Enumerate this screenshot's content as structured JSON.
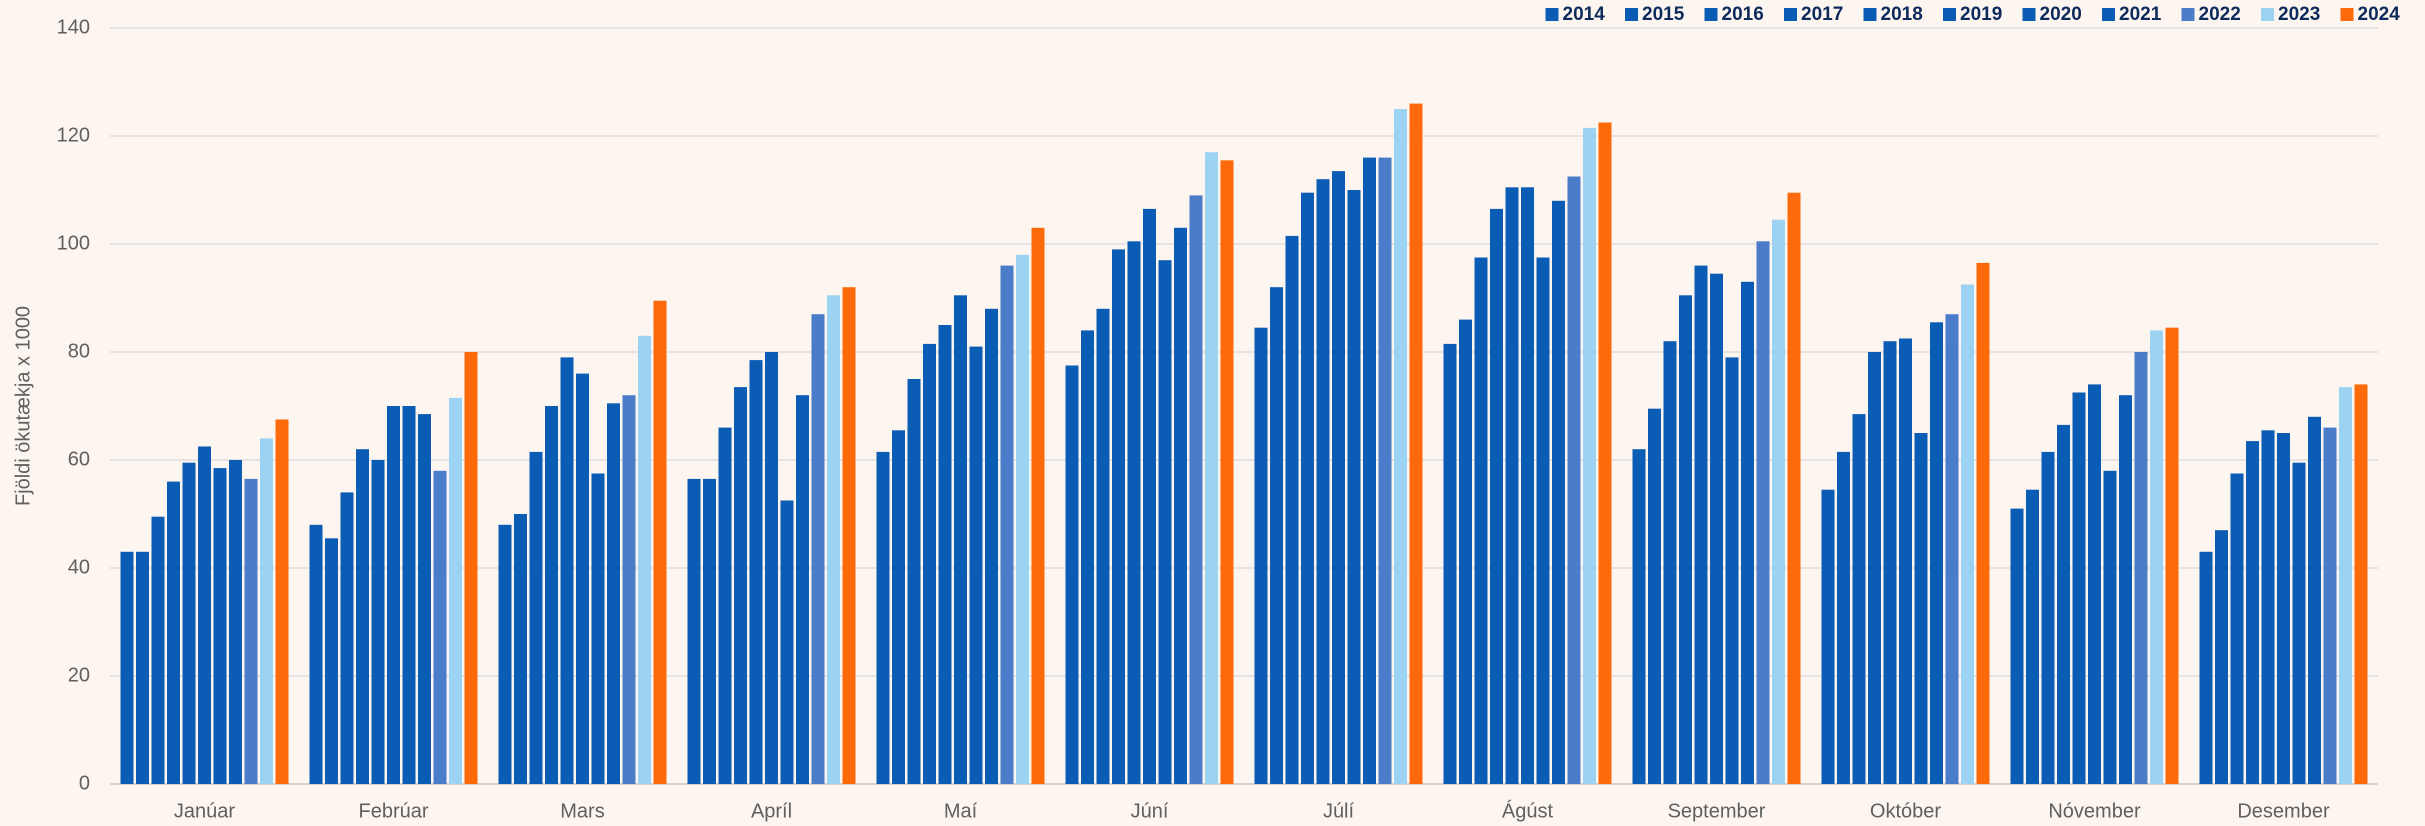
{
  "chart_data": {
    "type": "bar",
    "y_label": "Fjöldi ökutækja x 1000",
    "categories": [
      "Janúar",
      "Febrúar",
      "Mars",
      "Apríl",
      "Maí",
      "Júní",
      "Júlí",
      "Ágúst",
      "September",
      "Október",
      "Nóvember",
      "Desember"
    ],
    "series": [
      {
        "name": "2014",
        "color": "#0b5cb5",
        "values": [
          43,
          48,
          48,
          56.5,
          61.5,
          77.5,
          84.5,
          81.5,
          62,
          54.5,
          51,
          43
        ]
      },
      {
        "name": "2015",
        "color": "#0b5cb5",
        "values": [
          43,
          45.5,
          50,
          56.5,
          65.5,
          84,
          92,
          86,
          69.5,
          61.5,
          54.5,
          47
        ]
      },
      {
        "name": "2016",
        "color": "#0b5cb5",
        "values": [
          49.5,
          54,
          61.5,
          66,
          75,
          88,
          101.5,
          97.5,
          82,
          68.5,
          61.5,
          57.5
        ]
      },
      {
        "name": "2017",
        "color": "#0b5cb5",
        "values": [
          56,
          62,
          70,
          73.5,
          81.5,
          99,
          109.5,
          106.5,
          90.5,
          80,
          66.5,
          63.5
        ]
      },
      {
        "name": "2018",
        "color": "#0b5cb5",
        "values": [
          59.5,
          60,
          79,
          78.5,
          85,
          100.5,
          112,
          110.5,
          96,
          82,
          72.5,
          65.5
        ]
      },
      {
        "name": "2019",
        "color": "#0b5cb5",
        "values": [
          62.5,
          70,
          76,
          80,
          90.5,
          106.5,
          113.5,
          110.5,
          94.5,
          82.5,
          74,
          65
        ]
      },
      {
        "name": "2020",
        "color": "#0b5cb5",
        "values": [
          58.5,
          70,
          57.5,
          52.5,
          81,
          97,
          110,
          97.5,
          79,
          65,
          58,
          59.5
        ]
      },
      {
        "name": "2021",
        "color": "#0b5cb5",
        "values": [
          60,
          68.5,
          70.5,
          72,
          88,
          103,
          116,
          108,
          93,
          85.5,
          72,
          68
        ]
      },
      {
        "name": "2022",
        "color": "#4a7cc9",
        "values": [
          56.5,
          58,
          72,
          87,
          96,
          109,
          116,
          112.5,
          100.5,
          87,
          80,
          66
        ]
      },
      {
        "name": "2023",
        "color": "#9dd3f2",
        "values": [
          64,
          71.5,
          83,
          90.5,
          98,
          117,
          125,
          121.5,
          104.5,
          92.5,
          84,
          73.5
        ]
      },
      {
        "name": "2024",
        "color": "#fd6a0c",
        "values": [
          67.5,
          80,
          89.5,
          92,
          103,
          115.5,
          126,
          122.5,
          109.5,
          96.5,
          84.5,
          74
        ]
      }
    ],
    "ylim": [
      0,
      140
    ],
    "yticks": [
      0,
      20,
      40,
      60,
      80,
      100,
      120,
      140
    ],
    "grid": true,
    "legend": "top-right"
  }
}
